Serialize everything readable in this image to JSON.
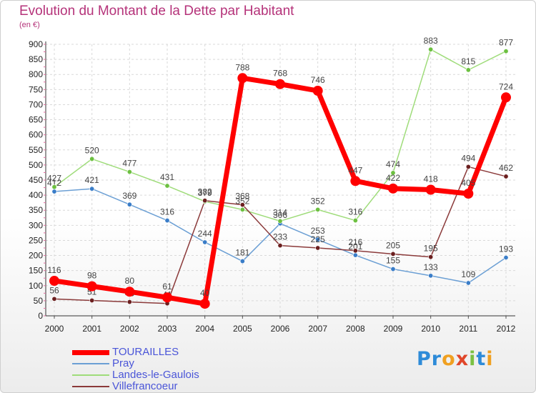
{
  "title": "Evolution du Montant de la Dette par Habitant",
  "subtitle": "(en €)",
  "brand": {
    "letters": [
      "P",
      "r",
      "o",
      "x",
      "i",
      "t",
      "i"
    ],
    "colors": [
      "#2e8bd8",
      "#2e8bd8",
      "#f0a020",
      "#e0462a",
      "#7bc143",
      "#2e8bd8",
      "#f0a020"
    ]
  },
  "chart_data": {
    "type": "line",
    "title": "Evolution du Montant de la Dette par Habitant",
    "xlabel": "",
    "ylabel": "(en €)",
    "x": [
      "2000",
      "2001",
      "2002",
      "2003",
      "2004",
      "2005",
      "2006",
      "2007",
      "2008",
      "2009",
      "2010",
      "2011",
      "2012"
    ],
    "yticks": [
      "0",
      "50",
      "100",
      "150",
      "200",
      "250",
      "300",
      "350",
      "400",
      "450",
      "500",
      "550",
      "600",
      "650",
      "700",
      "750",
      "800",
      "850",
      "900"
    ],
    "ylim": [
      0,
      900
    ],
    "grid": true,
    "legend_position": "bottom-left",
    "series": [
      {
        "name": "Pray",
        "color": "#6b9fd4",
        "point_color": "#3a7dc8",
        "values": [
          412,
          421,
          369,
          316,
          244,
          181,
          306,
          253,
          201,
          155,
          133,
          109,
          193
        ],
        "labels": [
          "412",
          "421",
          "369",
          "316",
          "244",
          "181",
          "306",
          "253",
          "201",
          "155",
          "133",
          "109",
          "193"
        ]
      },
      {
        "name": "Landes-le-Gaulois",
        "color": "#9fdc7a",
        "point_color": "#6cc040",
        "values": [
          427,
          520,
          477,
          431,
          379,
          352,
          314,
          352,
          316,
          474,
          883,
          815,
          877
        ],
        "labels": [
          "427",
          "520",
          "477",
          "431",
          "379",
          "352",
          "314",
          "352",
          "316",
          "474",
          "883",
          "815",
          "877"
        ]
      },
      {
        "name": "Villefrancoeur",
        "color": "#8b3a3a",
        "point_color": "#6b1f1f",
        "values": [
          56,
          51,
          46,
          41,
          382,
          368,
          233,
          225,
          216,
          205,
          195,
          494,
          462
        ],
        "labels": [
          "56",
          "51",
          "46",
          "41",
          "382",
          "368",
          "233",
          "225",
          "216",
          "205",
          "195",
          "494",
          "462"
        ]
      },
      {
        "name": "TOURAILLES",
        "color": "#ff0000",
        "point_color": "#ff0000",
        "values": [
          116,
          98,
          80,
          61,
          40,
          788,
          768,
          746,
          447,
          422,
          418,
          405,
          724
        ],
        "labels": [
          "116",
          "98",
          "80",
          "61",
          "40",
          "788",
          "768",
          "746",
          "447",
          "422",
          "418",
          "405",
          "724"
        ]
      }
    ]
  },
  "legend": [
    {
      "name": "TOURAILLES",
      "color": "#ff0000",
      "thickness": 7
    },
    {
      "name": "Pray",
      "color": "#6b9fd4",
      "thickness": 2
    },
    {
      "name": "Landes-le-Gaulois",
      "color": "#9fdc7a",
      "thickness": 2
    },
    {
      "name": "Villefrancoeur",
      "color": "#8b3a3a",
      "thickness": 2
    }
  ]
}
